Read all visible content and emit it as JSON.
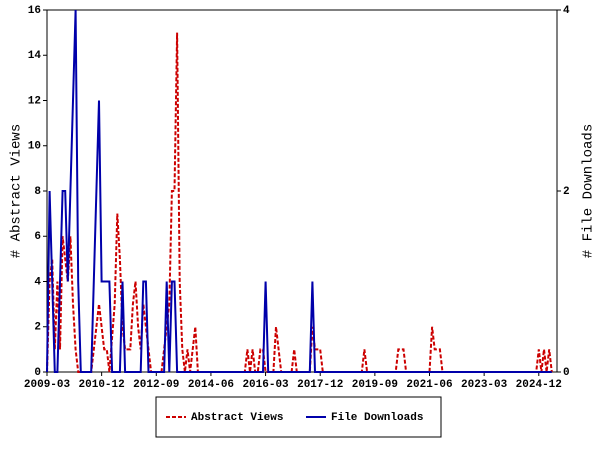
{
  "chart_data": {
    "type": "line",
    "xlim": [
      "2009-03",
      "2025-07"
    ],
    "xticks": [
      "2009-03",
      "2010-12",
      "2012-09",
      "2014-06",
      "2016-03",
      "2017-12",
      "2019-09",
      "2021-06",
      "2023-03",
      "2024-12"
    ],
    "ylim": [
      0,
      16
    ],
    "yticks": [
      0,
      2,
      4,
      6,
      8,
      10,
      12,
      14,
      16
    ],
    "y2lim": [
      0,
      4
    ],
    "y2ticks": [
      0,
      2,
      4
    ],
    "ylabel": "# Abstract Views",
    "y2label": "# File Downloads",
    "grid": false,
    "legend": "bottom",
    "series": [
      {
        "name": "Abstract Views",
        "color": "#cc0000",
        "dash": true,
        "x": [
          "2009-03",
          "2009-04",
          "2009-05",
          "2009-06",
          "2009-07",
          "2009-08",
          "2009-09",
          "2009-10",
          "2009-11",
          "2009-12",
          "2010-01",
          "2010-02",
          "2010-03",
          "2010-08",
          "2010-09",
          "2010-10",
          "2010-11",
          "2010-12",
          "2011-01",
          "2011-02",
          "2011-03",
          "2011-05",
          "2011-06",
          "2011-07",
          "2011-08",
          "2011-09",
          "2011-10",
          "2011-11",
          "2011-12",
          "2012-01",
          "2012-02",
          "2012-03",
          "2012-04",
          "2012-05",
          "2012-06",
          "2012-07",
          "2012-11",
          "2012-12",
          "2013-01",
          "2013-02",
          "2013-03",
          "2013-04",
          "2013-05",
          "2013-06",
          "2013-07",
          "2013-08",
          "2013-09",
          "2013-10",
          "2013-11",
          "2013-12",
          "2014-01",
          "2015-07",
          "2015-08",
          "2015-09",
          "2015-10",
          "2015-11",
          "2015-12",
          "2016-01",
          "2016-02",
          "2016-03",
          "2016-06",
          "2016-07",
          "2016-08",
          "2016-09",
          "2017-01",
          "2017-02",
          "2017-03",
          "2017-08",
          "2017-09",
          "2017-10",
          "2017-11",
          "2017-12",
          "2018-01",
          "2019-04",
          "2019-05",
          "2019-06",
          "2020-05",
          "2020-06",
          "2020-07",
          "2020-08",
          "2020-09",
          "2021-06",
          "2021-07",
          "2021-08",
          "2021-09",
          "2021-10",
          "2021-11",
          "2024-11",
          "2024-12",
          "2025-01",
          "2025-02",
          "2025-03",
          "2025-04",
          "2025-05"
        ],
        "values": [
          0,
          4,
          5,
          1,
          4,
          1,
          6,
          5,
          4,
          6,
          3,
          1,
          0,
          0,
          1,
          2,
          3,
          2,
          1,
          1,
          0,
          3,
          7,
          5,
          2,
          1,
          1,
          1,
          3,
          4,
          2,
          1,
          3,
          2,
          1,
          0,
          0,
          1,
          2,
          3,
          8,
          8,
          15,
          4,
          1,
          0,
          1,
          0,
          1,
          2,
          0,
          0,
          1,
          0,
          1,
          0,
          0,
          1,
          1,
          0,
          0,
          2,
          1,
          0,
          0,
          1,
          0,
          0,
          2,
          1,
          1,
          1,
          0,
          0,
          1,
          0,
          0,
          1,
          1,
          1,
          0,
          0,
          2,
          1,
          1,
          1,
          0,
          0,
          1,
          0,
          1,
          0,
          1,
          0
        ]
      },
      {
        "name": "File Downloads",
        "color": "#0000aa",
        "dash": false,
        "axis": "y2",
        "x": [
          "2009-03",
          "2009-04",
          "2009-05",
          "2009-06",
          "2009-07",
          "2009-08",
          "2009-09",
          "2009-10",
          "2009-11",
          "2009-12",
          "2010-01",
          "2010-02",
          "2010-03",
          "2010-04",
          "2010-08",
          "2010-09",
          "2010-10",
          "2010-11",
          "2010-12",
          "2011-01",
          "2011-02",
          "2011-03",
          "2011-04",
          "2011-07",
          "2011-08",
          "2011-09",
          "2012-03",
          "2012-04",
          "2012-05",
          "2012-06",
          "2012-12",
          "2013-01",
          "2013-02",
          "2013-03",
          "2013-04",
          "2013-05",
          "2016-02",
          "2016-03",
          "2016-04",
          "2017-08",
          "2017-09",
          "2017-10",
          "2025-05"
        ],
        "values": [
          0,
          2,
          1,
          0,
          0,
          1,
          2,
          2,
          1,
          2,
          3,
          4,
          1,
          0,
          0,
          1,
          2,
          3,
          1,
          1,
          1,
          1,
          0,
          0,
          1,
          0,
          0,
          1,
          1,
          0,
          0,
          1,
          0,
          1,
          1,
          0,
          0,
          1,
          0,
          0,
          1,
          0,
          0
        ]
      }
    ]
  }
}
